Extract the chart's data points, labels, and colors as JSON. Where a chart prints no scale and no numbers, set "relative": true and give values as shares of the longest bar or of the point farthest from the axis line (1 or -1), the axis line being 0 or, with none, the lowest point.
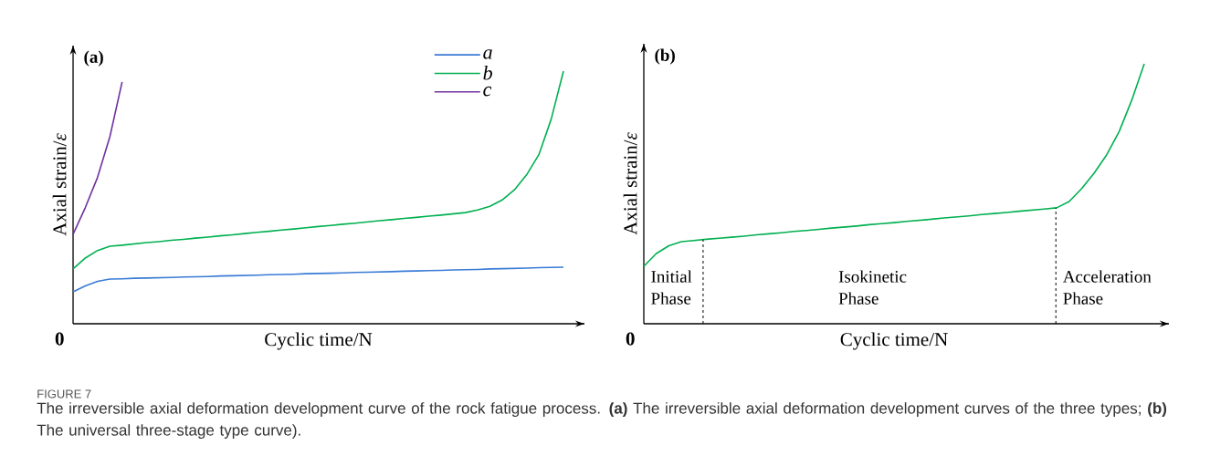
{
  "chart_data": [
    {
      "type": "line",
      "relative": true,
      "title": "(a)",
      "xlabel": "Cyclic time/N",
      "ylabel": "Axial strain/*ε*",
      "legend": "top right",
      "categories": [
        null,
        null,
        null,
        null,
        null,
        null,
        null,
        null,
        null,
        null,
        null,
        null,
        null,
        null,
        null,
        null,
        null,
        null,
        null,
        null,
        null,
        null,
        null,
        null,
        null,
        null,
        null,
        null,
        null,
        null,
        null,
        null,
        null,
        null,
        null,
        null,
        null,
        null,
        null,
        null,
        null
      ],
      "series": [
        {
          "name": "a",
          "color": "#3a7bd5",
          "values": [
            0.126,
            0.15,
            0.168,
            0.177,
            0.178,
            0.18,
            0.181,
            0.182,
            0.183,
            0.185,
            0.186,
            0.187,
            0.189,
            0.19,
            0.191,
            0.192,
            0.194,
            0.195,
            0.196,
            0.198,
            0.199,
            0.2,
            0.201,
            0.203,
            0.204,
            0.205,
            0.206,
            0.208,
            0.209,
            0.21,
            0.211,
            0.213,
            0.214,
            0.215,
            0.217,
            0.218,
            0.219,
            0.22,
            0.222,
            0.223,
            0.224
          ]
        },
        {
          "name": "b",
          "color": "#00b050",
          "values": [
            0.217,
            0.26,
            0.29,
            0.307,
            0.311,
            0.316,
            0.321,
            0.325,
            0.33,
            0.334,
            0.339,
            0.343,
            0.348,
            0.352,
            0.357,
            0.362,
            0.366,
            0.371,
            0.375,
            0.38,
            0.385,
            0.389,
            0.394,
            0.398,
            0.403,
            0.408,
            0.412,
            0.417,
            0.421,
            0.426,
            0.43,
            0.435,
            0.44,
            0.45,
            0.465,
            0.49,
            0.53,
            0.59,
            0.67,
            0.81,
            1.0
          ]
        },
        {
          "name": "c",
          "color": "#7030a0",
          "values": [
            0.354,
            0.46,
            0.58,
            0.74,
            0.957,
            null,
            null,
            null,
            null,
            null,
            null,
            null,
            null,
            null,
            null,
            null,
            null,
            null,
            null,
            null,
            null,
            null,
            null,
            null,
            null,
            null,
            null,
            null,
            null,
            null,
            null,
            null,
            null,
            null,
            null,
            null,
            null,
            null,
            null,
            null,
            null
          ]
        }
      ],
      "annotations": [
        "0",
        "FIGURE 7",
        "The irreversible axial deformation development curve of the rock fatigue process. **(a)** The irreversible axial deformation development curves of the three types; **(b)** The universal three-stage type curve)."
      ]
    },
    {
      "type": "line",
      "relative": true,
      "title": "(b)",
      "xlabel": "Cyclic time/N",
      "ylabel": "Axial strain/*ε*",
      "categories": [
        null,
        null,
        null,
        null,
        null,
        null,
        null,
        null,
        null,
        null,
        null,
        null,
        null,
        null,
        null,
        null,
        null,
        null,
        null,
        null,
        null,
        null,
        null,
        null,
        null,
        null,
        null,
        null,
        null,
        null,
        null,
        null,
        null,
        null,
        null,
        null,
        null,
        null,
        null,
        null,
        null
      ],
      "series": [
        {
          "color": "#00b050",
          "values": [
            0.221,
            0.27,
            0.3,
            0.316,
            0.32,
            0.325,
            0.329,
            0.333,
            0.337,
            0.342,
            0.346,
            0.35,
            0.355,
            0.359,
            0.363,
            0.368,
            0.372,
            0.376,
            0.381,
            0.385,
            0.389,
            0.394,
            0.398,
            0.402,
            0.407,
            0.411,
            0.415,
            0.42,
            0.424,
            0.428,
            0.433,
            0.437,
            0.441,
            0.446,
            0.47,
            0.52,
            0.58,
            0.65,
            0.74,
            0.86,
            1.0
          ]
        }
      ],
      "annotations": [
        "0",
        "Initial Phase",
        "Isokinetic Phase",
        "Acceleration Phase"
      ]
    }
  ]
}
